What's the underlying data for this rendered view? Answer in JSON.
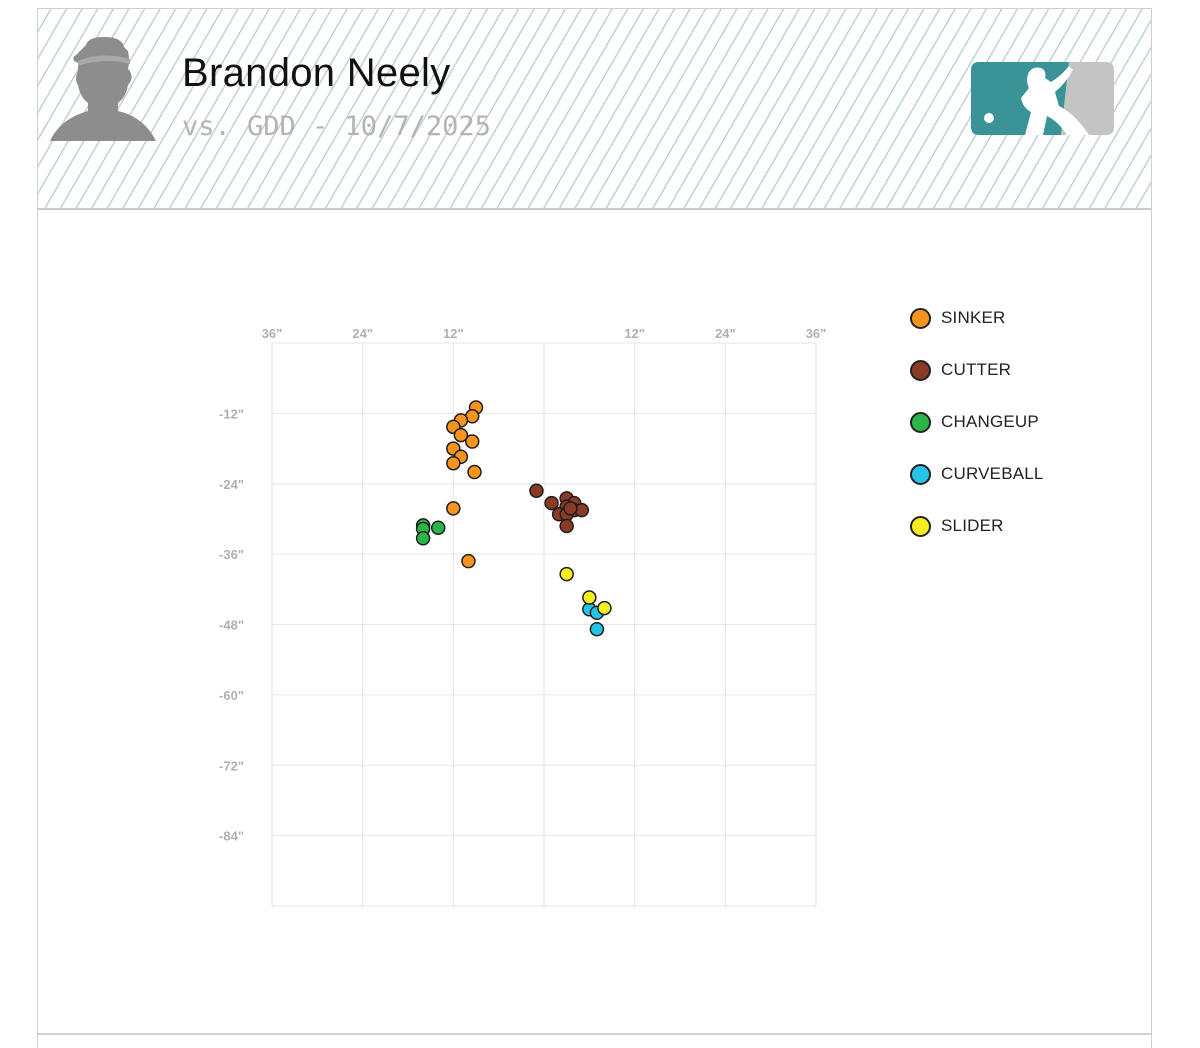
{
  "header": {
    "player_name": "Brandon Neely",
    "game_line": "vs. GDD - 10/7/2025",
    "avatar_icon": "player-silhouette-icon",
    "logo_icon": "mlb-logo-icon",
    "logo_colors": {
      "left": "#3a9396",
      "right": "#c4c4c4"
    }
  },
  "chart_data": {
    "type": "scatter",
    "x_ticks": [
      {
        "value": -36,
        "label": "36\""
      },
      {
        "value": -24,
        "label": "24\""
      },
      {
        "value": -12,
        "label": "12\""
      },
      {
        "value": 12,
        "label": "12\""
      },
      {
        "value": 24,
        "label": "24\""
      },
      {
        "value": 36,
        "label": "36\""
      }
    ],
    "y_ticks": [
      {
        "value": -12,
        "label": "-12\""
      },
      {
        "value": -24,
        "label": "-24\""
      },
      {
        "value": -36,
        "label": "-36\""
      },
      {
        "value": -48,
        "label": "-48\""
      },
      {
        "value": -60,
        "label": "-60\""
      },
      {
        "value": -72,
        "label": "-72\""
      },
      {
        "value": -84,
        "label": "-84\""
      }
    ],
    "xlim": [
      -36,
      36
    ],
    "ylim": [
      -96,
      0
    ],
    "grid": true,
    "legend_position": "right",
    "series": [
      {
        "name": "SINKER",
        "color": "#f7941d",
        "points": [
          {
            "x": -9,
            "y": -11
          },
          {
            "x": -9.5,
            "y": -12.5
          },
          {
            "x": -11,
            "y": -13.2
          },
          {
            "x": -12,
            "y": -14.3
          },
          {
            "x": -11,
            "y": -15.7
          },
          {
            "x": -9.5,
            "y": -16.8
          },
          {
            "x": -12,
            "y": -18
          },
          {
            "x": -11,
            "y": -19.4
          },
          {
            "x": -12,
            "y": -20.5
          },
          {
            "x": -9.2,
            "y": -22
          },
          {
            "x": -12,
            "y": -28.2
          },
          {
            "x": -10,
            "y": -37.2
          }
        ]
      },
      {
        "name": "CUTTER",
        "color": "#8b3a26",
        "points": [
          {
            "x": -1,
            "y": -25.2
          },
          {
            "x": 1,
            "y": -27.3
          },
          {
            "x": 3,
            "y": -26.5
          },
          {
            "x": 4,
            "y": -27.3
          },
          {
            "x": 3,
            "y": -27.9
          },
          {
            "x": 4,
            "y": -28.5
          },
          {
            "x": 5,
            "y": -28.5
          },
          {
            "x": 2,
            "y": -29.2
          },
          {
            "x": 3,
            "y": -29.2
          },
          {
            "x": 3.5,
            "y": -28.2
          },
          {
            "x": 3,
            "y": -31.2
          }
        ]
      },
      {
        "name": "CHANGEUP",
        "color": "#2ab548",
        "points": [
          {
            "x": -16,
            "y": -31.1
          },
          {
            "x": -14,
            "y": -31.5
          },
          {
            "x": -16,
            "y": -31.7
          },
          {
            "x": -16,
            "y": -33.3
          }
        ]
      },
      {
        "name": "CURVEBALL",
        "color": "#25c4e6",
        "points": [
          {
            "x": 6,
            "y": -45.4
          },
          {
            "x": 7,
            "y": -46
          },
          {
            "x": 7,
            "y": -48.8
          }
        ]
      },
      {
        "name": "SLIDER",
        "color": "#f7ec1d",
        "points": [
          {
            "x": 3,
            "y": -39.4
          },
          {
            "x": 6,
            "y": -43.4
          },
          {
            "x": 8,
            "y": -45.2
          }
        ]
      }
    ]
  }
}
